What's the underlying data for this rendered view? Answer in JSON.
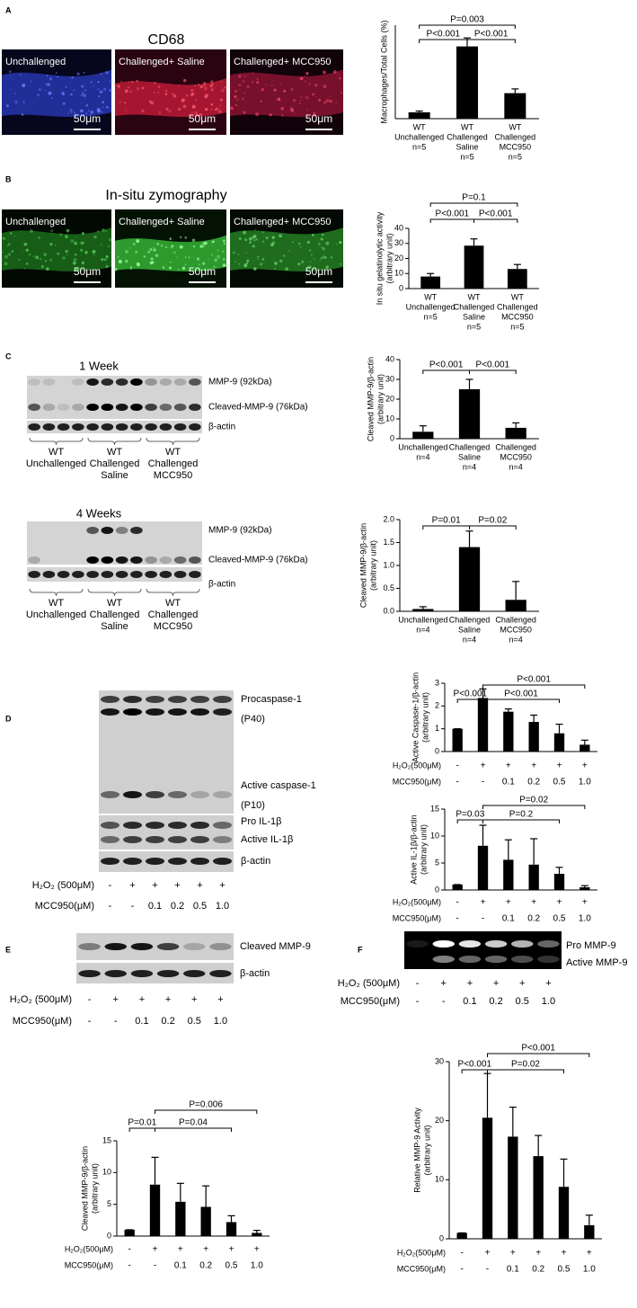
{
  "panel_labels": [
    "A",
    "B",
    "C",
    "D",
    "E",
    "F"
  ],
  "micrographs": [
    {
      "title": "CD68",
      "images": [
        {
          "label": "Unchallenged",
          "scale_bar": "50μm"
        },
        {
          "label": "Challenged+  Saline",
          "scale_bar": "50μm"
        },
        {
          "label": "Challenged+  MCC950",
          "scale_bar": "50μm"
        }
      ]
    },
    {
      "title": "In-situ zymography",
      "images": [
        {
          "label": "Unchallenged",
          "scale_bar": "50μm"
        },
        {
          "label": "Challenged+  Saline",
          "scale_bar": "50μm"
        },
        {
          "label": "Challenged+  MCC950",
          "scale_bar": "50μm"
        }
      ]
    }
  ],
  "blots": [
    {
      "title": "1 Week",
      "bands": [
        "MMP-9 (92kDa)",
        "Cleaved-MMP-9 (76kDa)",
        "β-actin"
      ],
      "groups": [
        [
          "WT",
          "Unchallenged"
        ],
        [
          "WT",
          "Challenged",
          "Saline"
        ],
        [
          "WT",
          "Challenged",
          "MCC950"
        ]
      ]
    },
    {
      "title": "4 Weeks",
      "bands": [
        "MMP-9 (92kDa)",
        "Cleaved-MMP-9 (76kDa)",
        "β-actin"
      ],
      "groups": [
        [
          "WT",
          "Unchallenged"
        ],
        [
          "WT",
          "Challenged",
          "Saline"
        ],
        [
          "WT",
          "Challenged",
          "MCC950"
        ]
      ]
    },
    {
      "bands": [
        "Procaspase-1",
        "(P40)",
        "Active caspase-1",
        "(P10)",
        "Pro IL-1β",
        "Active IL-1β",
        "β-actin"
      ],
      "treatments": [
        {
          "label": "H₂O₂ (500μM)",
          "values": [
            "-",
            "+",
            "+",
            "+",
            "+",
            "+"
          ]
        },
        {
          "label": "MCC950(μM)",
          "values": [
            "-",
            "-",
            "0.1",
            "0.2",
            "0.5",
            "1.0"
          ]
        }
      ]
    },
    {
      "bands": [
        "Cleaved MMP-9",
        "β-actin"
      ],
      "treatments": [
        {
          "label": "H₂O₂ (500μM)",
          "values": [
            "-",
            "+",
            "+",
            "+",
            "+",
            "+"
          ]
        },
        {
          "label": "MCC950(μM)",
          "values": [
            "-",
            "-",
            "0.1",
            "0.2",
            "0.5",
            "1.0"
          ]
        }
      ]
    },
    {
      "bands": [
        "Pro MMP-9",
        "Active MMP-9"
      ],
      "treatments": [
        {
          "label": "H₂O₂ (500μM)",
          "values": [
            "-",
            "+",
            "+",
            "+",
            "+",
            "+"
          ]
        },
        {
          "label": "MCC950(μM)",
          "values": [
            "-",
            "-",
            "0.1",
            "0.2",
            "0.5",
            "1.0"
          ]
        }
      ]
    }
  ],
  "chart_data": [
    {
      "type": "bar",
      "ylabel": [
        "Macrophages/Total Cells (%)"
      ],
      "categories": [
        [
          "WT",
          "Unchallenged",
          "n=5"
        ],
        [
          "WT",
          "Challenged",
          "Saline",
          "n=5"
        ],
        [
          "WT",
          "Challenged",
          "MCC950",
          "n=5"
        ]
      ],
      "values": [
        1.5,
        17,
        6
      ],
      "errors": [
        0.3,
        2,
        1
      ],
      "color": "#000000",
      "ylim": [
        0,
        22
      ],
      "brackets": [
        {
          "label": "P<0.001",
          "from": 0,
          "to": 1
        },
        {
          "label": "P<0.001",
          "from": 1,
          "to": 2
        },
        {
          "label": "P=0.003",
          "from": 0,
          "to": 2
        }
      ]
    },
    {
      "type": "bar",
      "ylabel": [
        "In situ gelatinolytic activity",
        "(arbitrary unit)"
      ],
      "categories": [
        [
          "WT",
          "Unchallenged",
          "n=5"
        ],
        [
          "WT",
          "Challenged",
          "Saline",
          "n=5"
        ],
        [
          "WT",
          "Challenged",
          "MCC950",
          "n=5"
        ]
      ],
      "values": [
        8,
        28.5,
        13
      ],
      "errors": [
        2,
        4.5,
        3
      ],
      "color": "#000000",
      "ylim": [
        0,
        40
      ],
      "yticks": [
        0,
        10,
        20,
        30,
        40
      ],
      "brackets": [
        {
          "label": "P<0.001",
          "from": 0,
          "to": 1
        },
        {
          "label": "P<0.001",
          "from": 1,
          "to": 2
        },
        {
          "label": "P=0.1",
          "from": 0,
          "to": 2
        }
      ]
    },
    {
      "type": "bar",
      "ylabel": [
        "Cleaved MMP-9/β-actin",
        "(arbitrary unit)"
      ],
      "categories": [
        [
          "Unchallenged",
          "n=4"
        ],
        [
          "Challenged",
          "Saline",
          "n=4"
        ],
        [
          "Challenged",
          "MCC950",
          "n=4"
        ]
      ],
      "values": [
        3.5,
        25,
        5.5
      ],
      "errors": [
        3,
        5,
        2.5
      ],
      "color": "#000000",
      "ylim": [
        0,
        40
      ],
      "yticks": [
        0,
        10,
        20,
        30,
        40
      ],
      "brackets": [
        {
          "label": "P<0.001",
          "from": 0,
          "to": 1
        },
        {
          "label": "P<0.001",
          "from": 1,
          "to": 2
        }
      ]
    },
    {
      "type": "bar",
      "ylabel": [
        "Cleaved MMP-9/β-actin",
        "(arbitrary unit)"
      ],
      "categories": [
        [
          "Unchallenged",
          "n=4"
        ],
        [
          "Challenged",
          "Saline",
          "n=4"
        ],
        [
          "Challenged",
          "MCC950",
          "n=4"
        ]
      ],
      "values": [
        0.05,
        1.4,
        0.25
      ],
      "errors": [
        0.05,
        0.35,
        0.4
      ],
      "color": "#000000",
      "ylim": [
        0,
        2
      ],
      "yticks": [
        {
          "value": 0,
          "label": "0.0"
        },
        0.5,
        {
          "value": 1,
          "label": "1.0"
        },
        1.5,
        {
          "value": 2,
          "label": "2.0"
        }
      ],
      "brackets": [
        {
          "label": "P=0.01",
          "from": 0,
          "to": 1
        },
        {
          "label": "P=0.02",
          "from": 1,
          "to": 2
        }
      ]
    },
    {
      "type": "bar",
      "ylabel": [
        "Active Caspase-1/β-actin",
        "(arbitrary unit)"
      ],
      "treatments": [
        {
          "label": "H₂O₂(500μM)",
          "values": [
            "-",
            "+",
            "+",
            "+",
            "+",
            "+"
          ]
        },
        {
          "label": "MCC950(μM)",
          "values": [
            "-",
            "-",
            "0.1",
            "0.2",
            "0.5",
            "1.0"
          ]
        }
      ],
      "values": [
        1,
        2.35,
        1.75,
        1.3,
        0.8,
        0.3
      ],
      "errors": [
        0,
        0.4,
        0.12,
        0.3,
        0.4,
        0.2
      ],
      "color": "#000000",
      "ylim": [
        0,
        3
      ],
      "yticks": [
        0,
        1,
        2,
        3
      ],
      "brackets": [
        {
          "label": "P<0.001",
          "from": 0,
          "to": 1
        },
        {
          "label": "P<0.001",
          "from": 1,
          "to": 4
        },
        {
          "label": "P<0.001",
          "from": 1,
          "to": 5
        }
      ]
    },
    {
      "type": "bar",
      "ylabel": [
        "Active IL-1β/β-actin",
        "(arbitrary unit)"
      ],
      "treatments": [
        {
          "label": "H₂O₂(500μM)",
          "values": [
            "-",
            "+",
            "+",
            "+",
            "+",
            "+"
          ]
        },
        {
          "label": "MCC950(μM)",
          "values": [
            "-",
            "-",
            "0.1",
            "0.2",
            "0.5",
            "1.0"
          ]
        }
      ],
      "values": [
        1,
        8.2,
        5.6,
        4.7,
        3,
        0.5
      ],
      "errors": [
        0,
        3.8,
        3.7,
        4.8,
        1.2,
        0.3
      ],
      "color": "#000000",
      "ylim": [
        0,
        15
      ],
      "yticks": [
        0,
        5,
        10,
        15
      ],
      "brackets": [
        {
          "label": "P=0.03",
          "from": 0,
          "to": 1
        },
        {
          "label": "P=0.2",
          "from": 1,
          "to": 4
        },
        {
          "label": "P=0.02",
          "from": 1,
          "to": 5
        }
      ]
    },
    {
      "type": "bar",
      "ylabel": [
        "Cleaved MMP-9/β-actin",
        "(arbitrary unit)"
      ],
      "treatments": [
        {
          "label": "H₂O₂(500μM)",
          "values": [
            "-",
            "+",
            "+",
            "+",
            "+",
            "+"
          ]
        },
        {
          "label": "MCC950(μM)",
          "values": [
            "-",
            "-",
            "0.1",
            "0.2",
            "0.5",
            "1.0"
          ]
        }
      ],
      "values": [
        1,
        8.1,
        5.4,
        4.6,
        2.2,
        0.5
      ],
      "errors": [
        0,
        4.3,
        2.9,
        3.3,
        1,
        0.4
      ],
      "color": "#000000",
      "ylim": [
        0,
        15
      ],
      "yticks": [
        0,
        5,
        10,
        15
      ],
      "brackets": [
        {
          "label": "P=0.01",
          "from": 0,
          "to": 1
        },
        {
          "label": "P=0.04",
          "from": 1,
          "to": 4
        },
        {
          "label": "P=0.006",
          "from": 1,
          "to": 5
        }
      ]
    },
    {
      "type": "bar",
      "ylabel": [
        "Relative MMP-9 Activity",
        "(arbitrary unit)"
      ],
      "treatments": [
        {
          "label": "H₂O₂(500μM)",
          "values": [
            "-",
            "+",
            "+",
            "+",
            "+",
            "+"
          ]
        },
        {
          "label": "MCC950(μM)",
          "values": [
            "-",
            "-",
            "0.1",
            "0.2",
            "0.5",
            "1.0"
          ]
        }
      ],
      "values": [
        1,
        20.5,
        17.3,
        14,
        8.8,
        2.3
      ],
      "errors": [
        0,
        7.5,
        5,
        3.5,
        4.7,
        1.7
      ],
      "color": "#000000",
      "ylim": [
        0,
        30
      ],
      "yticks": [
        0,
        10,
        20,
        30
      ],
      "brackets": [
        {
          "label": "P<0.001",
          "from": 0,
          "to": 1
        },
        {
          "label": "P=0.02",
          "from": 1,
          "to": 4
        },
        {
          "label": "P<0.001",
          "from": 1,
          "to": 5
        }
      ]
    }
  ]
}
